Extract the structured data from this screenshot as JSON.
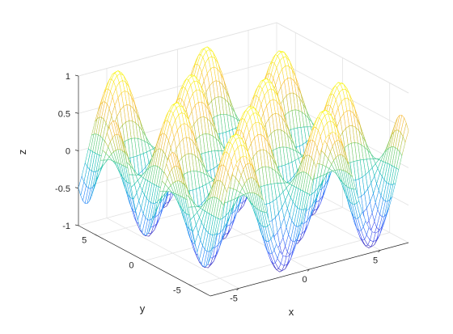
{
  "chart_data": {
    "type": "mesh",
    "function": "z = sin(x) * cos(y)",
    "x_range": [
      -7,
      7
    ],
    "y_range": [
      -7,
      7
    ],
    "x_samples": 61,
    "y_samples": 61,
    "xlabel": "x",
    "ylabel": "y",
    "zlabel": "z",
    "xlim": [
      -7,
      7
    ],
    "ylim": [
      -7,
      7
    ],
    "zlim": [
      -1,
      1
    ],
    "x_ticks": [
      {
        "value": -5,
        "label": "-5"
      },
      {
        "value": 0,
        "label": "0"
      },
      {
        "value": 5,
        "label": "5"
      }
    ],
    "y_ticks": [
      {
        "value": -5,
        "label": "-5"
      },
      {
        "value": 0,
        "label": "0"
      },
      {
        "value": 5,
        "label": "5"
      }
    ],
    "z_ticks": [
      {
        "value": -1,
        "label": "-1"
      },
      {
        "value": -0.5,
        "label": "-0.5"
      },
      {
        "value": 0,
        "label": "0"
      },
      {
        "value": 0.5,
        "label": "0.5"
      },
      {
        "value": 1,
        "label": "1"
      }
    ],
    "grid": true,
    "colormap": "parula",
    "colormap_stops": [
      "#3e26a8",
      "#4355f5",
      "#2a87f8",
      "#17abd9",
      "#18c0b1",
      "#62cd74",
      "#c0c13a",
      "#f9bb3b",
      "#f9e12a",
      "#f9fb15"
    ]
  }
}
